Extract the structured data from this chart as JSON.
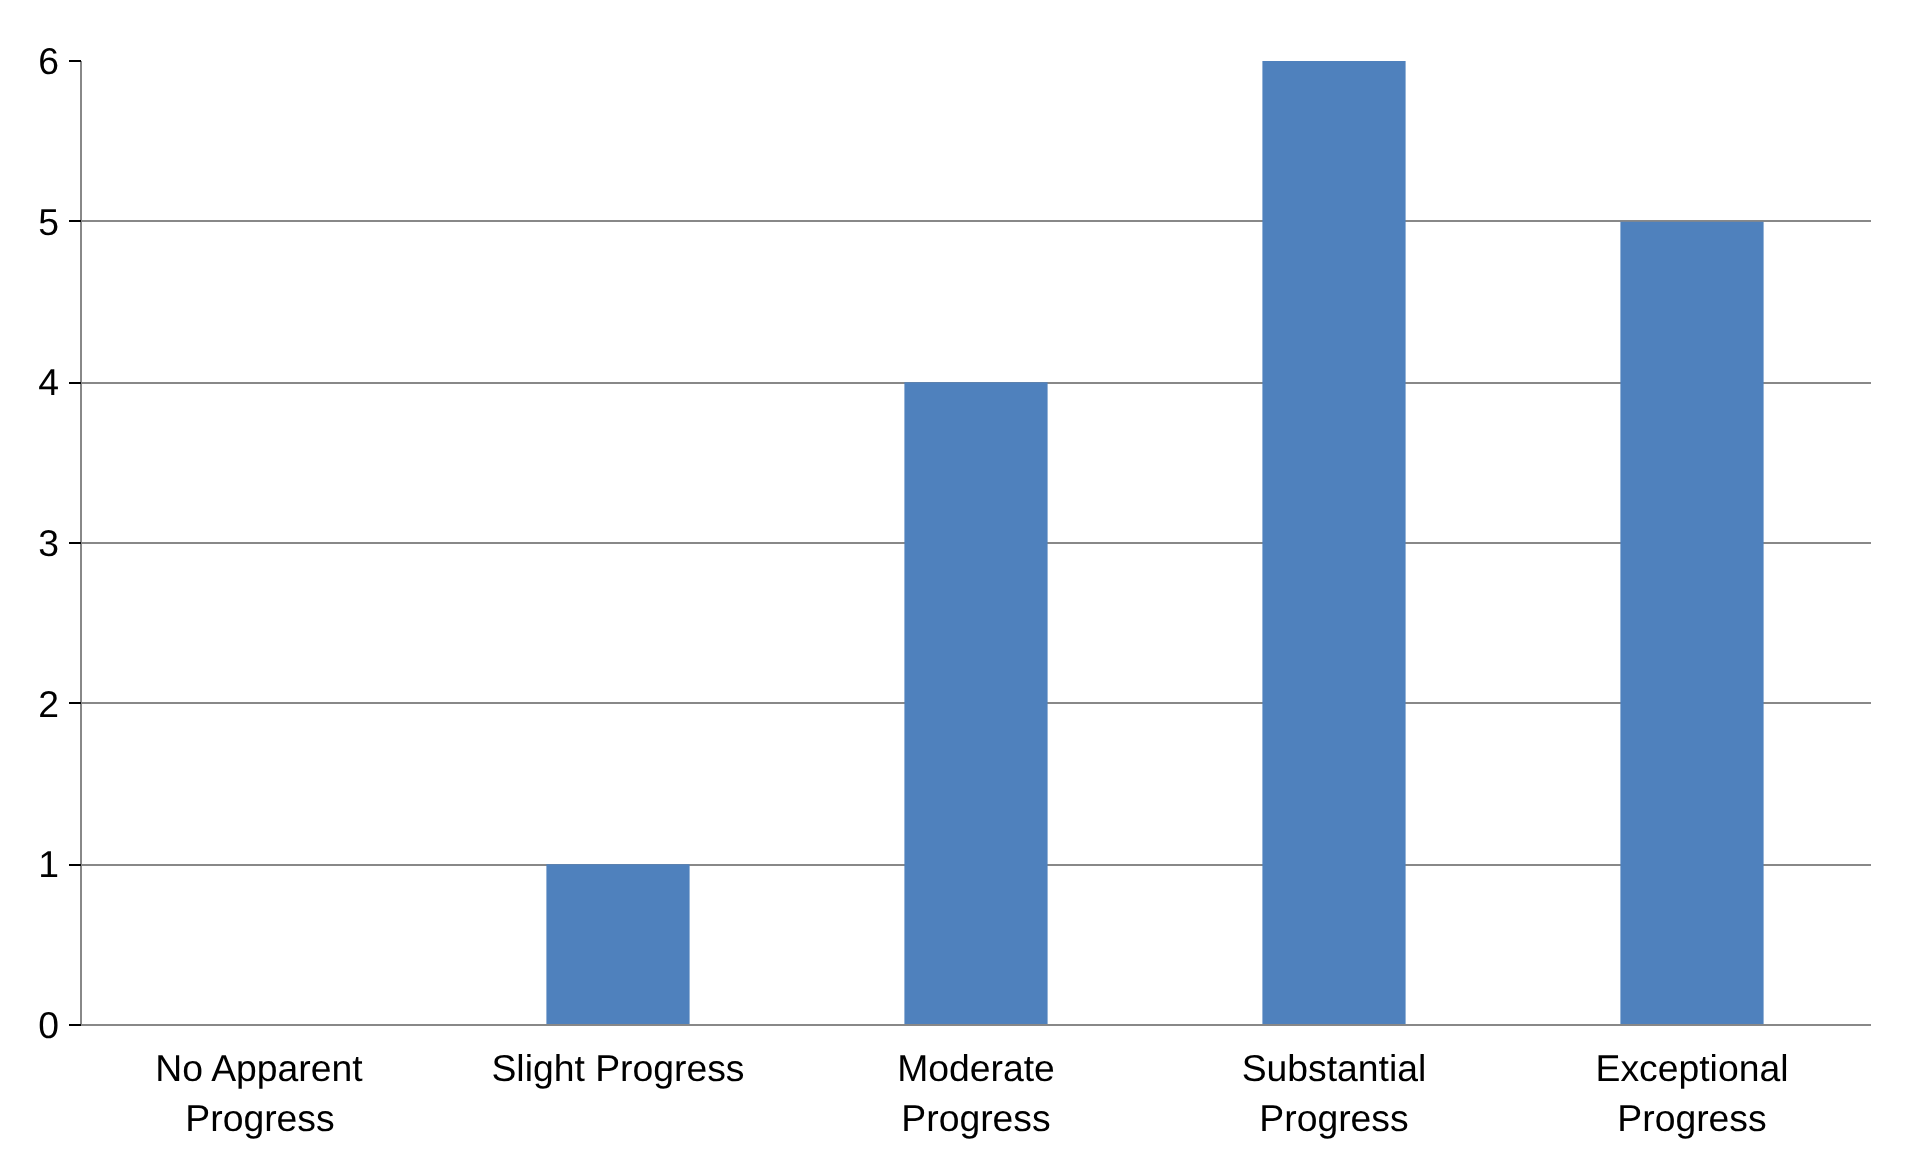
{
  "chart_data": {
    "type": "bar",
    "categories": [
      "No Apparent Progress",
      "Slight Progress",
      "Moderate Progress",
      "Substantial Progress",
      "Exceptional Progress"
    ],
    "values": [
      0,
      1,
      4,
      6,
      5
    ],
    "color": "#4f81bd",
    "ylim": [
      0,
      6
    ],
    "yticks": [
      0,
      1,
      2,
      3,
      4,
      5,
      6
    ],
    "grid": "y"
  }
}
